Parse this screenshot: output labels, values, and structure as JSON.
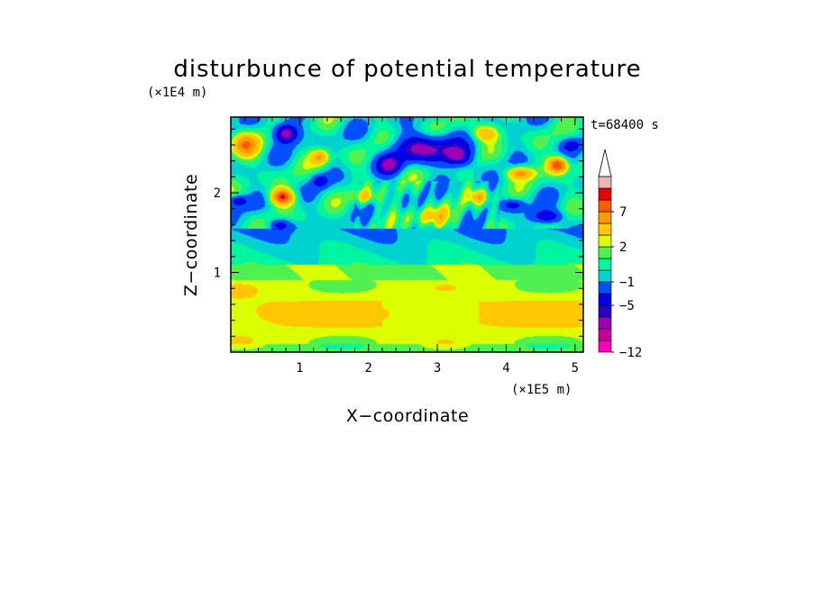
{
  "chart_data": {
    "type": "heatmap",
    "title": "disturbunce of potential temperature",
    "xlabel": "X−coordinate",
    "ylabel": "Z−coordinate",
    "x_unit": "(×1E5 m)",
    "y_unit": "(×1E4 m)",
    "time_label": "t=68400 s",
    "xlim": [
      0,
      5.12
    ],
    "ylim": [
      0,
      2.95
    ],
    "x_ticks": [
      "1",
      "2",
      "3",
      "4",
      "5"
    ],
    "y_ticks": [
      "1",
      "2"
    ],
    "colorbar": {
      "levels": [
        -12,
        -10,
        -8,
        -6,
        -5,
        -3,
        -1,
        0,
        1,
        2,
        3,
        5,
        7,
        9,
        11,
        13
      ],
      "labels": [
        "−12",
        "−5",
        "−1",
        "2",
        "7"
      ],
      "colors": [
        "#ff00b4",
        "#c8009b",
        "#9b00b4",
        "#2800c8",
        "#0000e6",
        "#0050ff",
        "#00d2d2",
        "#00f5a0",
        "#50f050",
        "#dcff00",
        "#ffc800",
        "#ff9b00",
        "#ff5a00",
        "#e60000",
        "#f0b4b4"
      ],
      "extend": "max"
    },
    "features": [
      {
        "x": 2.85,
        "z": 2.55,
        "sx": 0.45,
        "sz": 0.17,
        "v": -6.5
      },
      {
        "x": 2.3,
        "z": 2.35,
        "sx": 0.18,
        "sz": 0.12,
        "v": -5.5
      },
      {
        "x": 3.3,
        "z": 2.45,
        "sx": 0.2,
        "sz": 0.12,
        "v": -5.5
      },
      {
        "x": 0.8,
        "z": 2.75,
        "sx": 0.17,
        "sz": 0.12,
        "v": -8
      },
      {
        "x": 0.1,
        "z": 1.9,
        "sx": 0.13,
        "sz": 0.07,
        "v": -5
      },
      {
        "x": 4.6,
        "z": 1.7,
        "sx": 0.22,
        "sz": 0.09,
        "v": -5.5
      },
      {
        "x": 4.1,
        "z": 1.85,
        "sx": 0.16,
        "sz": 0.07,
        "v": -4
      },
      {
        "x": 0.7,
        "z": 1.6,
        "sx": 0.16,
        "sz": 0.07,
        "v": -4
      },
      {
        "x": 1.3,
        "z": 2.15,
        "sx": 0.12,
        "sz": 0.08,
        "v": -4
      },
      {
        "x": 4.95,
        "z": 2.6,
        "sx": 0.14,
        "sz": 0.08,
        "v": -3
      },
      {
        "x": 0.75,
        "z": 1.95,
        "sx": 0.16,
        "sz": 0.1,
        "v": 9
      },
      {
        "x": 4.75,
        "z": 2.35,
        "sx": 0.14,
        "sz": 0.1,
        "v": 9
      },
      {
        "x": 4.2,
        "z": 2.25,
        "sx": 0.2,
        "sz": 0.08,
        "v": 6
      },
      {
        "x": 0.2,
        "z": 2.6,
        "sx": 0.2,
        "sz": 0.16,
        "v": 6
      },
      {
        "x": 1.3,
        "z": 2.45,
        "sx": 0.14,
        "sz": 0.1,
        "v": 5
      },
      {
        "x": 3.7,
        "z": 2.75,
        "sx": 0.2,
        "sz": 0.1,
        "v": 5
      },
      {
        "x": 1.95,
        "z": 1.95,
        "sx": 0.15,
        "sz": 0.09,
        "v": 4
      },
      {
        "x": 3.6,
        "z": 1.95,
        "sx": 0.15,
        "sz": 0.09,
        "v": 4
      },
      {
        "x": 2.9,
        "z": 1.7,
        "sx": 0.35,
        "sz": 0.12,
        "v": 3
      }
    ]
  }
}
